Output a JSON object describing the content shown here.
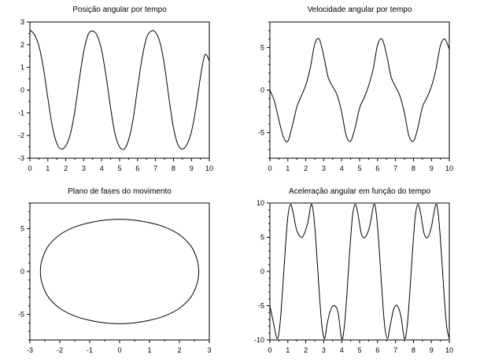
{
  "chart_data": [
    {
      "type": "line",
      "title": "Posição angular por tempo",
      "xlabel": "",
      "ylabel": "",
      "xlim": [
        0,
        10
      ],
      "ylim": [
        -3,
        3
      ],
      "xticks": [
        0,
        1,
        2,
        3,
        4,
        5,
        6,
        7,
        8,
        9,
        10
      ],
      "yticks": [
        -3,
        -2,
        -1,
        0,
        1,
        2,
        3
      ],
      "x": [
        0,
        0.25,
        0.5,
        0.75,
        1.0,
        1.25,
        1.5,
        1.75,
        2.0,
        2.25,
        2.5,
        2.75,
        3.0,
        3.25,
        3.5,
        3.75,
        4.0,
        4.25,
        4.5,
        4.75,
        5.0,
        5.25,
        5.5,
        5.75,
        6.0,
        6.25,
        6.5,
        6.75,
        7.0,
        7.25,
        7.5,
        7.75,
        8.0,
        8.25,
        8.5,
        8.75,
        9.0,
        9.25,
        9.5,
        9.75,
        10.0
      ],
      "y": [
        2.65,
        2.45,
        1.95,
        1.0,
        -0.35,
        -1.6,
        -2.35,
        -2.6,
        -2.45,
        -1.95,
        -0.95,
        0.45,
        1.7,
        2.45,
        2.6,
        2.4,
        1.75,
        0.6,
        -0.8,
        -1.95,
        -2.5,
        -2.6,
        -2.2,
        -1.3,
        0.1,
        1.4,
        2.3,
        2.6,
        2.55,
        2.1,
        1.1,
        -0.35,
        -1.65,
        -2.4,
        -2.6,
        -2.4,
        -1.85,
        -0.8,
        0.55,
        1.55,
        1.3
      ]
    },
    {
      "type": "line",
      "title": "Velocidade angular por tempo",
      "xlabel": "",
      "ylabel": "",
      "xlim": [
        0,
        10
      ],
      "ylim": [
        -8,
        8
      ],
      "xticks": [
        0,
        1,
        2,
        3,
        4,
        5,
        6,
        7,
        8,
        9,
        10
      ],
      "yticks": [
        -5,
        0,
        5
      ],
      "x": [
        0,
        0.25,
        0.5,
        0.75,
        1.0,
        1.25,
        1.5,
        1.75,
        2.0,
        2.25,
        2.5,
        2.75,
        3.0,
        3.25,
        3.5,
        3.75,
        4.0,
        4.25,
        4.5,
        4.75,
        5.0,
        5.25,
        5.5,
        5.75,
        6.0,
        6.25,
        6.5,
        6.75,
        7.0,
        7.25,
        7.5,
        7.75,
        8.0,
        8.25,
        8.5,
        8.75,
        9.0,
        9.25,
        9.5,
        9.75,
        10.0
      ],
      "y": [
        0,
        -1.3,
        -3.5,
        -5.5,
        -6.0,
        -4.2,
        -2.0,
        -0.7,
        0.6,
        2.6,
        5.4,
        6.0,
        4.0,
        1.5,
        0.4,
        -0.6,
        -2.6,
        -5.3,
        -6.0,
        -4.4,
        -2.1,
        -0.9,
        0.5,
        2.4,
        5.3,
        6.0,
        4.2,
        1.6,
        0.4,
        -0.7,
        -2.7,
        -5.4,
        -6.0,
        -4.4,
        -2.0,
        -0.9,
        0.4,
        2.4,
        5.2,
        6.0,
        4.8
      ]
    },
    {
      "type": "line",
      "title": "Plano de fases do movimento",
      "xlabel": "",
      "ylabel": "",
      "xlim": [
        -3,
        3
      ],
      "ylim": [
        -8,
        8
      ],
      "xticks": [
        -3,
        -2,
        -1,
        0,
        1,
        2,
        3
      ],
      "yticks": [
        -5,
        0,
        5
      ],
      "x": [
        2.65,
        2.6,
        2.4,
        2.0,
        1.5,
        1.0,
        0.5,
        0.0,
        -0.5,
        -1.0,
        -1.5,
        -2.0,
        -2.4,
        -2.6,
        -2.65,
        -2.6,
        -2.4,
        -2.0,
        -1.5,
        -1.0,
        -0.5,
        0.0,
        0.5,
        1.0,
        1.5,
        2.0,
        2.4,
        2.6,
        2.65
      ],
      "y": [
        0,
        1.3,
        2.9,
        4.3,
        5.2,
        5.7,
        6.0,
        6.1,
        6.0,
        5.7,
        5.2,
        4.3,
        2.9,
        1.3,
        0,
        -1.3,
        -2.9,
        -4.3,
        -5.2,
        -5.7,
        -6.0,
        -6.1,
        -6.0,
        -5.7,
        -5.2,
        -4.3,
        -2.9,
        -1.3,
        0
      ]
    },
    {
      "type": "line",
      "title": "Aceleração angular em função do tempo",
      "xlabel": "",
      "ylabel": "",
      "xlim": [
        0,
        10
      ],
      "ylim": [
        -10,
        10
      ],
      "xticks": [
        0,
        1,
        2,
        3,
        4,
        5,
        6,
        7,
        8,
        9,
        10
      ],
      "yticks": [
        -10,
        -5,
        0,
        5,
        10
      ],
      "x": [
        0,
        0.2,
        0.4,
        0.55,
        0.7,
        0.85,
        1.0,
        1.15,
        1.3,
        1.5,
        1.8,
        2.1,
        2.3,
        2.45,
        2.6,
        2.75,
        2.9,
        3.05,
        3.2,
        3.4,
        3.6,
        3.8,
        4.0,
        4.15,
        4.3,
        4.45,
        4.6,
        4.75,
        4.9,
        5.1,
        5.3,
        5.55,
        5.8,
        5.95,
        6.1,
        6.25,
        6.4,
        6.55,
        6.7,
        6.9,
        7.1,
        7.3,
        7.5,
        7.65,
        7.8,
        7.95,
        8.1,
        8.25,
        8.4,
        8.6,
        8.8,
        9.0,
        9.25,
        9.4,
        9.55,
        9.7,
        9.85,
        10.0
      ],
      "y": [
        -5,
        -7.5,
        -9.8,
        -8,
        -3,
        3,
        8,
        9.8,
        8.5,
        6,
        5,
        7,
        9.8,
        8,
        3,
        -3,
        -8,
        -9.8,
        -7.5,
        -5.5,
        -5,
        -6,
        -9.8,
        -8,
        -3,
        3,
        8,
        9.8,
        8.5,
        5.5,
        5,
        6.5,
        9.8,
        8,
        3,
        -3,
        -8,
        -9.8,
        -8,
        -5.5,
        -5,
        -6.5,
        -9.8,
        -8,
        -3,
        3,
        8,
        9.8,
        8.5,
        5.5,
        5,
        6.5,
        9.8,
        8,
        3,
        -3,
        -8,
        -9.8
      ]
    }
  ]
}
